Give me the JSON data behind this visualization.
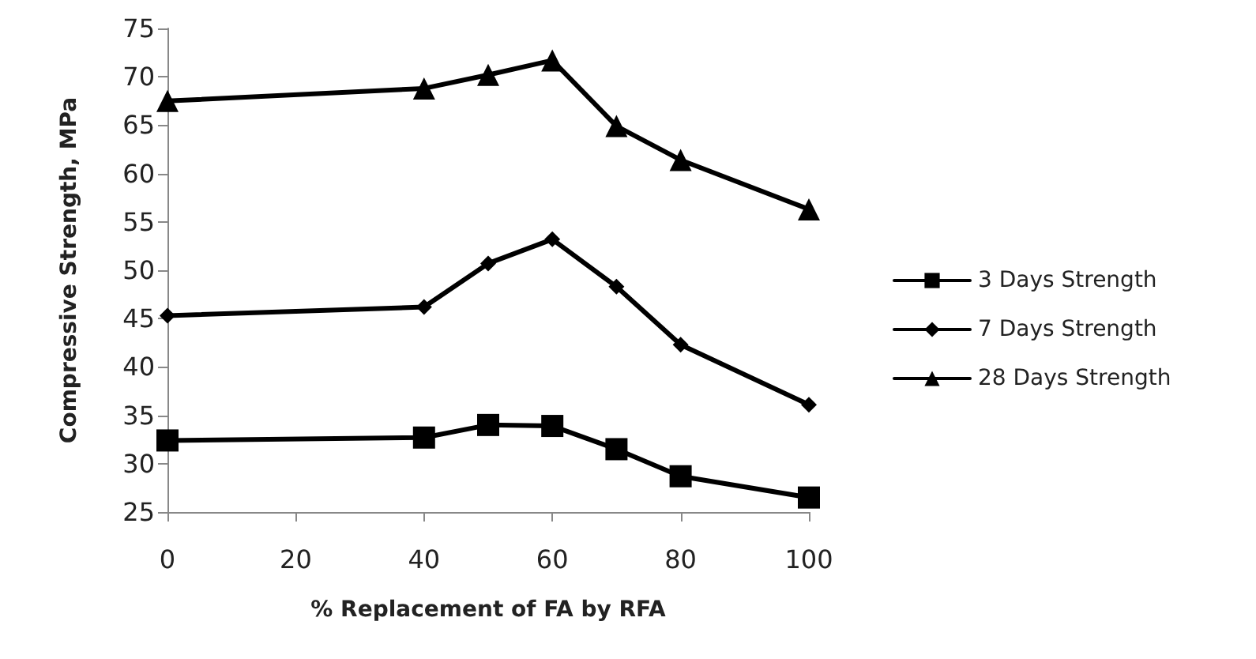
{
  "chart_data": {
    "type": "line",
    "xlabel": "% Replacement of FA by RFA",
    "ylabel": "Compressive Strength, MPa",
    "x": [
      0,
      40,
      50,
      60,
      70,
      80,
      100
    ],
    "series": [
      {
        "name": "3 Days Strength",
        "color": "#000000",
        "marker": "square",
        "values": [
          32.4,
          32.7,
          34.0,
          33.9,
          31.5,
          28.7,
          26.5
        ]
      },
      {
        "name": "7 Days Strength",
        "color": "#000000",
        "marker": "diamond",
        "values": [
          45.3,
          46.2,
          50.7,
          53.2,
          48.3,
          42.3,
          36.1
        ]
      },
      {
        "name": "28 Days Strength",
        "color": "#000000",
        "marker": "triangle",
        "values": [
          67.5,
          68.8,
          70.2,
          71.7,
          64.9,
          61.4,
          56.3
        ]
      }
    ],
    "xlim": [
      0,
      100
    ],
    "xticks": [
      0,
      20,
      40,
      60,
      80,
      100
    ],
    "ylim": [
      25,
      75
    ],
    "yticks": [
      25,
      30,
      35,
      40,
      45,
      50,
      55,
      60,
      65,
      70,
      75
    ],
    "grid": false,
    "legend": "right",
    "line_style": "solid"
  }
}
